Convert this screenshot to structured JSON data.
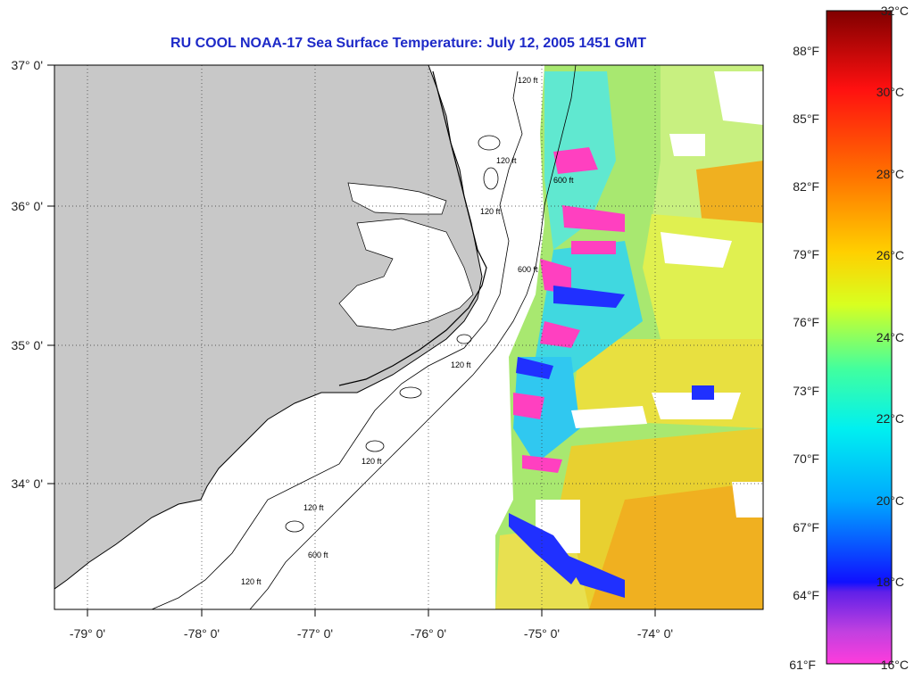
{
  "title": "RU COOL  NOAA-17  Sea Surface Temperature:  July 12, 2005 1451 GMT",
  "map": {
    "lon_range": [
      -79.3,
      -73.1
    ],
    "lat_range": [
      33.1,
      37.0
    ],
    "lon_ticks": [
      "-79° 0'",
      "-78° 0'",
      "-77° 0'",
      "-76° 0'",
      "-75° 0'",
      "-74° 0'"
    ],
    "lat_ticks": [
      "37° 0'",
      "36° 0'",
      "35° 0'",
      "34° 0'"
    ],
    "grid": "dotted",
    "land_color": "#c8c8c8",
    "contour_labels": [
      "120 ft",
      "120 ft",
      "600 ft",
      "120 ft",
      "600 ft",
      "120 ft",
      "120 ft",
      "120 ft",
      "600 ft",
      "120 ft"
    ]
  },
  "colorbar": {
    "fahrenheit_labels": [
      "88°F",
      "85°F",
      "82°F",
      "79°F",
      "76°F",
      "73°F",
      "70°F",
      "67°F",
      "64°F",
      "61°F"
    ],
    "celsius_labels": [
      "32°C",
      "30°C",
      "28°C",
      "26°C",
      "24°C",
      "22°C",
      "20°C",
      "18°C",
      "16°C"
    ],
    "range_celsius": [
      16,
      32
    ],
    "colors": [
      "#ff40c8",
      "#8a30e0",
      "#1a20ff",
      "#00aaff",
      "#00f0f0",
      "#40ffa0",
      "#e0ff20",
      "#ffd000",
      "#ff8000",
      "#ff2020",
      "#800000"
    ]
  }
}
